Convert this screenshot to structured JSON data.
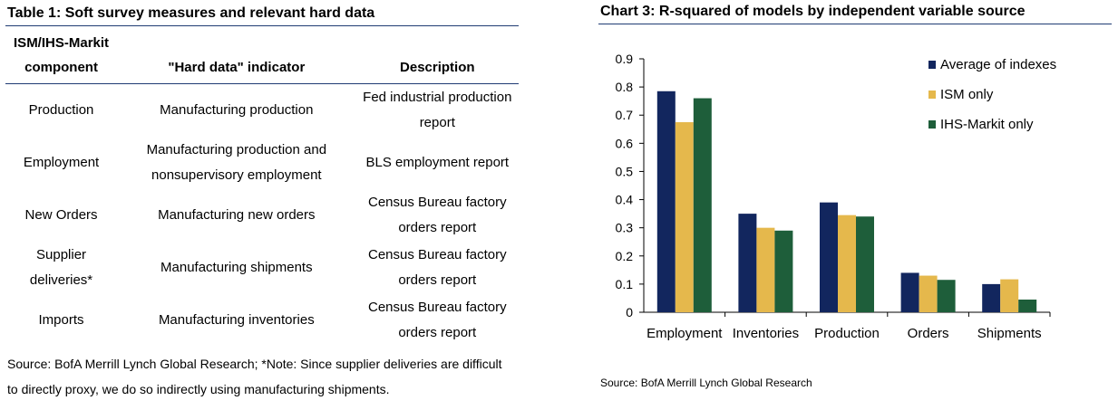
{
  "table": {
    "title": "Table 1: Soft survey measures and relevant hard data",
    "headers": [
      "ISM/IHS-Markit component",
      "\"Hard data\" indicator",
      "Description"
    ],
    "header_col1_line1": "ISM/IHS-Markit",
    "header_col1_line2": "component",
    "rows": [
      {
        "component": "Production",
        "indicator": "Manufacturing production",
        "description": "Fed industrial production report"
      },
      {
        "component": "Employment",
        "indicator": "Manufacturing production and nonsupervisory employment",
        "description": "BLS employment report"
      },
      {
        "component": "New Orders",
        "indicator": "Manufacturing new orders",
        "description": "Census Bureau factory orders report"
      },
      {
        "component": "Supplier deliveries*",
        "indicator": "Manufacturing shipments",
        "description": "Census Bureau factory orders report"
      },
      {
        "component": "Imports",
        "indicator": "Manufacturing inventories",
        "description": "Census Bureau factory orders report"
      }
    ],
    "source": "Source: BofA Merrill Lynch Global Research; *Note: Since supplier deliveries are difficult to directly proxy, we do so indirectly using manufacturing shipments."
  },
  "chart": {
    "title": "Chart 3: R-squared of models by independent variable source",
    "source": "Source: BofA Merrill Lynch Global Research"
  },
  "chart_data": {
    "type": "bar",
    "title": "Chart 3: R-squared of models by independent variable source",
    "xlabel": "",
    "ylabel": "",
    "ylim": [
      0,
      0.9
    ],
    "yticks": [
      "0",
      "0.1",
      "0.2",
      "0.3",
      "0.4",
      "0.5",
      "0.6",
      "0.7",
      "0.8",
      "0.9"
    ],
    "grid": false,
    "legend_position": "top-right",
    "categories": [
      "Employment",
      "Inventories",
      "Production",
      "Orders",
      "Shipments"
    ],
    "series": [
      {
        "name": "Average of indexes",
        "color": "#12265e",
        "values": [
          0.785,
          0.35,
          0.39,
          0.14,
          0.1
        ]
      },
      {
        "name": "ISM only",
        "color": "#e5b84c",
        "values": [
          0.675,
          0.3,
          0.345,
          0.13,
          0.117
        ]
      },
      {
        "name": "IHS-Markit only",
        "color": "#1e5e3a",
        "values": [
          0.76,
          0.29,
          0.34,
          0.115,
          0.045
        ]
      }
    ]
  }
}
